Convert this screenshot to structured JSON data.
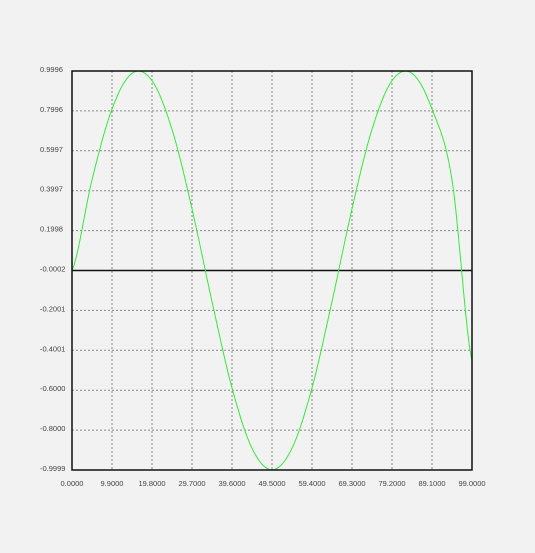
{
  "chart_data": {
    "type": "line",
    "title": "",
    "xlabel": "",
    "ylabel": "",
    "xlim": [
      0,
      99
    ],
    "ylim": [
      -0.9999,
      0.9996
    ],
    "grid": true,
    "x_tick_labels": [
      "0.0000",
      "9.9000",
      "19.8000",
      "29.7000",
      "39.6000",
      "49.5000",
      "59.4000",
      "69.3000",
      "79.2000",
      "89.1000",
      "99.0000"
    ],
    "y_tick_labels": [
      "0.9996",
      "0.7996",
      "0.5997",
      "0.3997",
      "0.1998",
      "-0.0002",
      "-0.2001",
      "-0.4001",
      "-0.6000",
      "-0.8000",
      "-0.9999"
    ],
    "series": [
      {
        "color": "#33ee33",
        "x": [
          0,
          4.95,
          9.9,
          14.85,
          19.8,
          24.75,
          29.7,
          34.65,
          39.6,
          44.55,
          49.5,
          54.45,
          59.4,
          64.35,
          69.3,
          74.25,
          79.2,
          84.15,
          89.1,
          94.05,
          99
        ],
        "y": [
          0,
          0.454,
          0.809,
          0.988,
          0.951,
          0.707,
          0.309,
          -0.156,
          -0.588,
          -0.891,
          -0.999,
          -0.891,
          -0.588,
          -0.156,
          0.309,
          0.707,
          0.951,
          0.988,
          0.809,
          0.454,
          -0.454
        ]
      }
    ]
  }
}
